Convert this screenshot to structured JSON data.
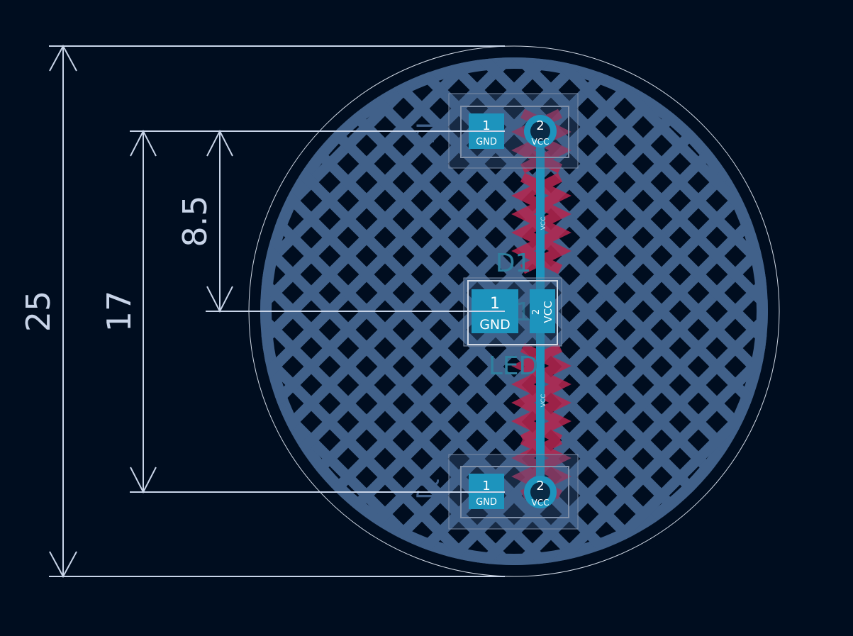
{
  "colors": {
    "background": "#000d1f",
    "zone": "#41618a",
    "edge": "#d0d8e4",
    "dimension": "#c8d4e8",
    "copper_front": "#1d94bd",
    "copper_back": "#b8254e",
    "silkscreen_back": "#2f7f9e",
    "courtyard": "#8090a8",
    "pad_text": "#ffffff"
  },
  "dimensions": [
    {
      "name": "dimension-25",
      "label": "25"
    },
    {
      "name": "dimension-17",
      "label": "17"
    },
    {
      "name": "dimension-8-5",
      "label": "8.5"
    }
  ],
  "net_labels": [
    "VCC",
    "VCC"
  ],
  "components": {
    "d1": {
      "reference": "D1",
      "value": "LED",
      "back_marker": "1",
      "pad1": {
        "number": "1",
        "net": "GND"
      },
      "pad2": {
        "number": "2",
        "net": "VCC"
      }
    },
    "connector_top": {
      "back_reference": "J2",
      "pad1": {
        "number": "1",
        "net": "GND"
      },
      "pad2": {
        "number": "2",
        "net": "VCC"
      }
    },
    "connector_bottom": {
      "back_reference": "J1",
      "pad1": {
        "number": "1",
        "net": "GND"
      },
      "pad2": {
        "number": "2",
        "net": "VCC"
      }
    }
  }
}
